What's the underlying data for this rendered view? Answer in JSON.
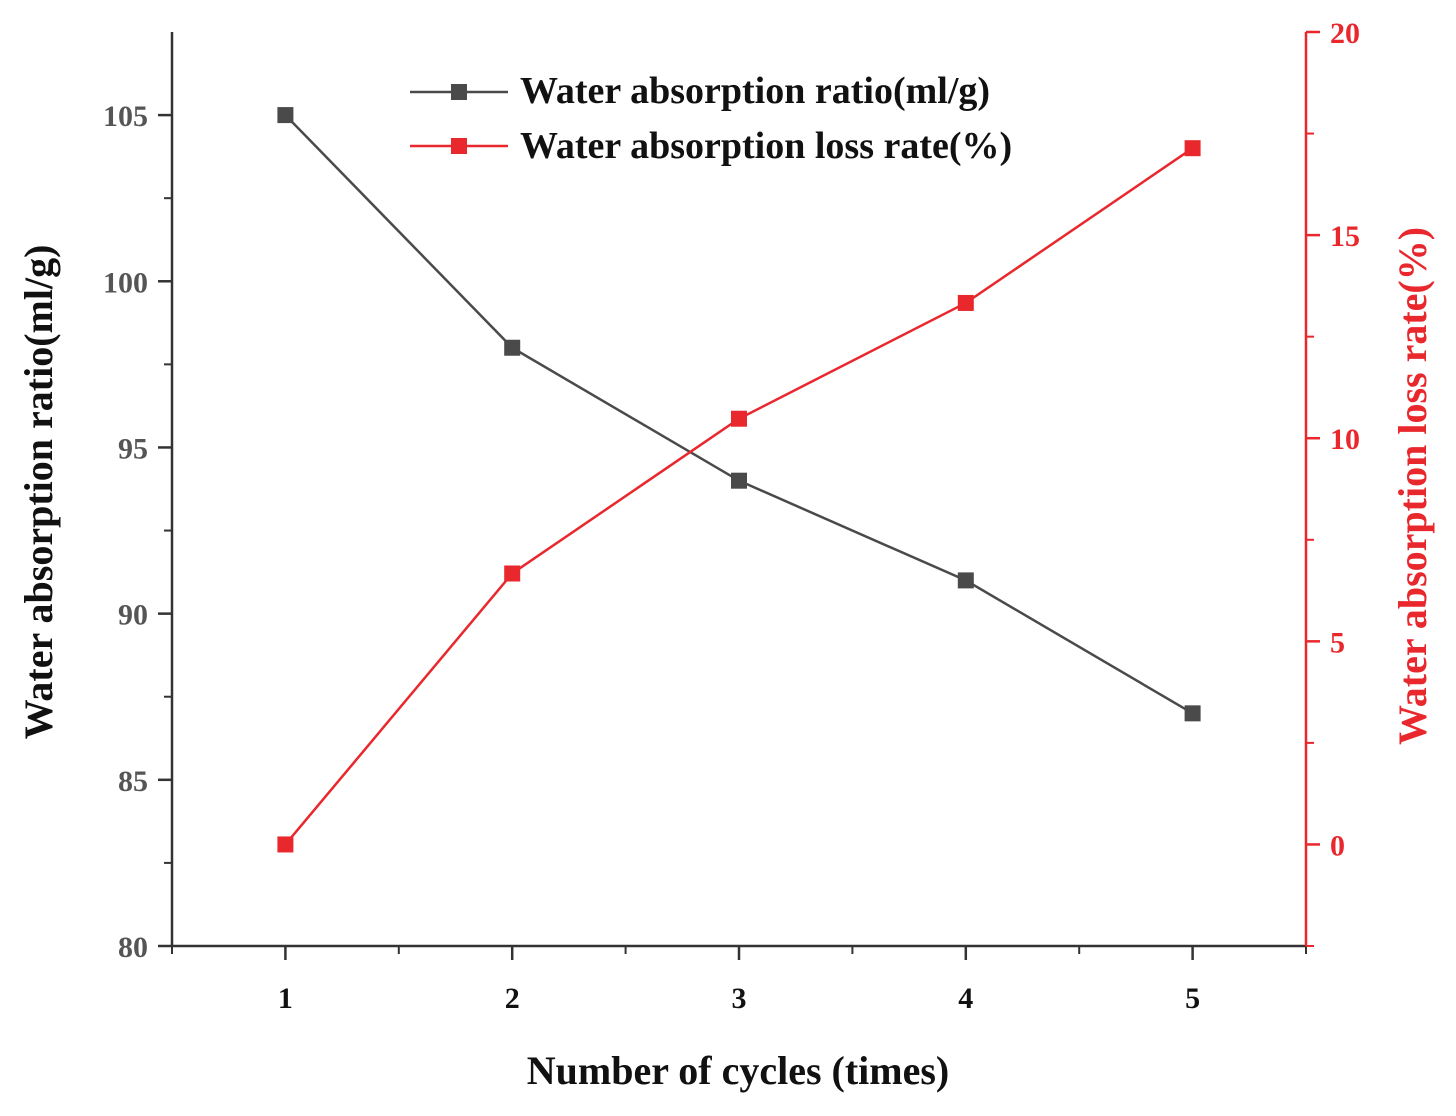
{
  "chart_data": {
    "type": "line",
    "title": "",
    "x": [
      1,
      2,
      3,
      4,
      5
    ],
    "xlabel": "Number of cycles (times)",
    "xlim": [
      0.5,
      5.5
    ],
    "xticks": [
      "1",
      "2",
      "3",
      "4",
      "5"
    ],
    "y_left": {
      "label": "Water absorption ratio(ml/g)",
      "lim": [
        80,
        107.5
      ],
      "ticks": [
        "80",
        "85",
        "90",
        "95",
        "100",
        "105"
      ]
    },
    "y_right": {
      "label": "Water absorption loss rate(%)",
      "lim": [
        -2.5,
        20
      ],
      "ticks": [
        "0",
        "5",
        "10",
        "15",
        "20"
      ]
    },
    "series": [
      {
        "name": "Water absorption ratio(ml/g)",
        "axis": "left",
        "values": [
          105,
          98,
          94,
          91,
          87
        ],
        "color": "#4a4a4a"
      },
      {
        "name": "Water absorption loss rate(%)",
        "axis": "right",
        "values": [
          0,
          6.67,
          10.48,
          13.33,
          17.14
        ],
        "color": "#e8282d"
      }
    ],
    "legend_position": "top-center",
    "grid": false
  },
  "colors": {
    "axis": "#333333",
    "left_text": "#555555",
    "right_axis": "#e8282d",
    "label_dark": "#111111"
  }
}
